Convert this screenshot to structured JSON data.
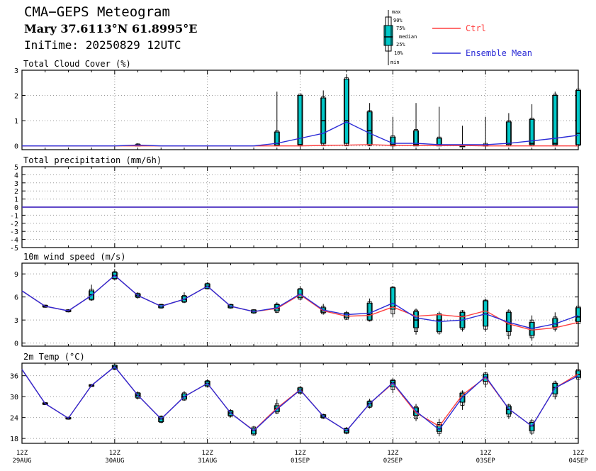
{
  "header": {
    "title": "CMA−GEPS Meteogram",
    "location": "Mary 37.6113°N 61.8995°E",
    "init_time": "IniTime: 20250829 12UTC"
  },
  "legend": {
    "box_labels": [
      "max",
      "90%",
      "75%",
      "median",
      "25%",
      "10%",
      "min"
    ],
    "ctrl_label": "Ctrl",
    "mean_label": "Ensemble Mean",
    "ctrl_color": "#ff4040",
    "mean_color": "#2b2bd6",
    "box_color": "#00c8c8"
  },
  "x_axis": {
    "ticks": [
      {
        "top": "12Z",
        "bottom": "29AUG"
      },
      {
        "top": "12Z",
        "bottom": "30AUG"
      },
      {
        "top": "12Z",
        "bottom": "31AUG"
      },
      {
        "top": "12Z",
        "bottom": "01SEP"
      },
      {
        "top": "12Z",
        "bottom": "02SEP"
      },
      {
        "top": "12Z",
        "bottom": "03SEP"
      },
      {
        "top": "12Z",
        "bottom": "04SEP"
      }
    ]
  },
  "chart_data": [
    {
      "type": "box",
      "title": "Total Cloud Cover (%)",
      "ylim": [
        -0.15,
        3
      ],
      "yticks": [
        0,
        1,
        2,
        3
      ],
      "ctrl": [
        0,
        0,
        0,
        0,
        0,
        0,
        0,
        0,
        0,
        0,
        0,
        0,
        0,
        0.02,
        0.03,
        0.05,
        0.02,
        0.02,
        0.01,
        0.02,
        0,
        0,
        0,
        0,
        0
      ],
      "mean": [
        0,
        0,
        0,
        0,
        0,
        0.03,
        0,
        0,
        0,
        0,
        0,
        0.1,
        0.3,
        0.5,
        0.95,
        0.5,
        0.1,
        0.1,
        0.05,
        0.05,
        0.05,
        0.1,
        0.2,
        0.3,
        0.42
      ],
      "boxes": [
        {
          "i": 5,
          "min": 0,
          "p10": 0,
          "p25": 0.02,
          "median": 0.03,
          "p75": 0.05,
          "p90": 0.08,
          "max": 0.1
        },
        {
          "i": 11,
          "min": 0,
          "p10": 0,
          "p25": 0.03,
          "median": 0.1,
          "p75": 0.55,
          "p90": 0.6,
          "max": 2.15
        },
        {
          "i": 12,
          "min": 0,
          "p10": 0,
          "p25": 0.05,
          "median": 0.05,
          "p75": 2.0,
          "p90": 2.05,
          "max": 2.05
        },
        {
          "i": 13,
          "min": 0,
          "p10": 0,
          "p25": 0.1,
          "median": 1.0,
          "p75": 1.9,
          "p90": 1.95,
          "max": 2.2
        },
        {
          "i": 14,
          "min": 0,
          "p10": 0,
          "p25": 0.1,
          "median": 1.0,
          "p75": 2.65,
          "p90": 2.7,
          "max": 2.85
        },
        {
          "i": 15,
          "min": 0,
          "p10": 0,
          "p25": 0.05,
          "median": 0.6,
          "p75": 1.35,
          "p90": 1.4,
          "max": 1.7
        },
        {
          "i": 16,
          "min": 0,
          "p10": 0,
          "p25": 0,
          "median": 0.05,
          "p75": 0.35,
          "p90": 0.4,
          "max": 1.15
        },
        {
          "i": 17,
          "min": 0,
          "p10": 0,
          "p25": 0,
          "median": 0.05,
          "p75": 0.6,
          "p90": 0.65,
          "max": 1.7
        },
        {
          "i": 18,
          "min": 0,
          "p10": 0,
          "p25": 0,
          "median": 0.05,
          "p75": 0.3,
          "p90": 0.35,
          "max": 1.55
        },
        {
          "i": 19,
          "min": 0,
          "p10": 0,
          "p25": 0,
          "median": 0,
          "p75": 0.02,
          "p90": 0.05,
          "max": 0.8
        },
        {
          "i": 20,
          "min": 0,
          "p10": 0,
          "p25": 0,
          "median": 0.02,
          "p75": 0.05,
          "p90": 0.1,
          "max": 1.15
        },
        {
          "i": 21,
          "min": 0,
          "p10": 0,
          "p25": 0.05,
          "median": 0.1,
          "p75": 0.95,
          "p90": 1.0,
          "max": 1.3
        },
        {
          "i": 22,
          "min": 0,
          "p10": 0,
          "p25": 0.05,
          "median": 0.1,
          "p75": 1.05,
          "p90": 1.1,
          "max": 1.65
        },
        {
          "i": 23,
          "min": 0,
          "p10": 0,
          "p25": 0.05,
          "median": 0.1,
          "p75": 2.0,
          "p90": 2.05,
          "max": 2.15
        },
        {
          "i": 24,
          "min": 0,
          "p10": 0,
          "p25": 0.05,
          "median": 0.5,
          "p75": 2.2,
          "p90": 2.25,
          "max": 2.3
        }
      ]
    },
    {
      "type": "box",
      "title": "Total precipitation (mm/6h)",
      "ylim": [
        -5,
        5
      ],
      "yticks": [
        -5,
        -4,
        -3,
        -2,
        -1,
        0,
        1,
        2,
        3,
        4,
        5
      ],
      "ctrl": [
        0,
        0,
        0,
        0,
        0,
        0,
        0,
        0,
        0,
        0,
        0,
        0,
        0,
        0,
        0,
        0,
        0,
        0,
        0,
        0,
        0,
        0,
        0,
        0,
        0
      ],
      "mean": [
        0,
        0,
        0,
        0,
        0,
        0,
        0,
        0,
        0,
        0,
        0,
        0,
        0,
        0,
        0,
        0,
        0,
        0,
        0,
        0,
        0,
        0,
        0,
        0,
        0
      ],
      "boxes": []
    },
    {
      "type": "box",
      "title": "10m wind speed (m/s)",
      "ylim": [
        -0.4,
        10.4
      ],
      "yticks": [
        0,
        3,
        6,
        9
      ],
      "ctrl": [
        6.8,
        4.8,
        4.2,
        6.2,
        8.8,
        6.2,
        4.8,
        5.7,
        7.4,
        4.8,
        4.1,
        4.5,
        6.3,
        4.2,
        3.5,
        3.6,
        4.7,
        3.5,
        3.7,
        3.4,
        4.2,
        2.5,
        1.7,
        2.0,
        2.7
      ],
      "mean": [
        6.8,
        4.8,
        4.2,
        6.2,
        8.8,
        6.2,
        4.8,
        5.7,
        7.4,
        4.8,
        4.1,
        4.6,
        6.4,
        4.3,
        3.7,
        3.9,
        5.2,
        3.3,
        2.8,
        3.0,
        3.8,
        2.7,
        1.9,
        2.5,
        3.6
      ],
      "boxes": [
        {
          "i": 1,
          "min": 4.6,
          "p10": 4.65,
          "p25": 4.7,
          "median": 4.8,
          "p75": 4.9,
          "p90": 4.95,
          "max": 5.0
        },
        {
          "i": 2,
          "min": 4.0,
          "p10": 4.05,
          "p25": 4.1,
          "median": 4.2,
          "p75": 4.3,
          "p90": 4.35,
          "max": 4.4
        },
        {
          "i": 3,
          "min": 5.5,
          "p10": 5.6,
          "p25": 5.7,
          "median": 6.3,
          "p75": 6.8,
          "p90": 7.0,
          "max": 7.6
        },
        {
          "i": 4,
          "min": 8.2,
          "p10": 8.3,
          "p25": 8.4,
          "median": 8.8,
          "p75": 9.2,
          "p90": 9.3,
          "max": 9.6
        },
        {
          "i": 5,
          "min": 5.8,
          "p10": 5.9,
          "p25": 6.0,
          "median": 6.2,
          "p75": 6.4,
          "p90": 6.5,
          "max": 6.6
        },
        {
          "i": 6,
          "min": 4.5,
          "p10": 4.55,
          "p25": 4.6,
          "median": 4.8,
          "p75": 5.0,
          "p90": 5.05,
          "max": 5.1
        },
        {
          "i": 7,
          "min": 5.2,
          "p10": 5.3,
          "p25": 5.4,
          "median": 5.7,
          "p75": 6.1,
          "p90": 6.2,
          "max": 6.6
        },
        {
          "i": 8,
          "min": 7.0,
          "p10": 7.05,
          "p25": 7.1,
          "median": 7.4,
          "p75": 7.7,
          "p90": 7.8,
          "max": 7.9
        },
        {
          "i": 9,
          "min": 4.5,
          "p10": 4.55,
          "p25": 4.6,
          "median": 4.8,
          "p75": 5.0,
          "p90": 5.05,
          "max": 5.1
        },
        {
          "i": 10,
          "min": 3.8,
          "p10": 3.9,
          "p25": 3.95,
          "median": 4.1,
          "p75": 4.3,
          "p90": 4.35,
          "max": 4.4
        },
        {
          "i": 11,
          "min": 3.9,
          "p10": 4.0,
          "p25": 4.2,
          "median": 4.5,
          "p75": 5.0,
          "p90": 5.1,
          "max": 5.3
        },
        {
          "i": 12,
          "min": 5.6,
          "p10": 5.7,
          "p25": 5.9,
          "median": 6.3,
          "p75": 7.0,
          "p90": 7.1,
          "max": 7.4
        },
        {
          "i": 13,
          "min": 3.7,
          "p10": 3.8,
          "p25": 4.0,
          "median": 4.2,
          "p75": 4.6,
          "p90": 4.8,
          "max": 5.1
        },
        {
          "i": 14,
          "min": 3.0,
          "p10": 3.1,
          "p25": 3.3,
          "median": 3.5,
          "p75": 3.9,
          "p90": 4.0,
          "max": 4.2
        },
        {
          "i": 15,
          "min": 2.8,
          "p10": 2.9,
          "p25": 3.0,
          "median": 3.7,
          "p75": 5.2,
          "p90": 5.4,
          "max": 5.8
        },
        {
          "i": 16,
          "min": 3.4,
          "p10": 3.8,
          "p25": 4.4,
          "median": 4.7,
          "p75": 7.2,
          "p90": 7.3,
          "max": 7.4
        },
        {
          "i": 17,
          "min": 1.1,
          "p10": 1.5,
          "p25": 2.0,
          "median": 3.0,
          "p75": 4.1,
          "p90": 4.3,
          "max": 4.5
        },
        {
          "i": 18,
          "min": 1.1,
          "p10": 1.3,
          "p25": 1.5,
          "median": 3.0,
          "p75": 3.7,
          "p90": 3.9,
          "max": 4.1
        },
        {
          "i": 19,
          "min": 1.5,
          "p10": 1.8,
          "p25": 2.0,
          "median": 3.5,
          "p75": 4.0,
          "p90": 4.2,
          "max": 4.3
        },
        {
          "i": 20,
          "min": 1.5,
          "p10": 1.8,
          "p25": 2.2,
          "median": 3.8,
          "p75": 5.5,
          "p90": 5.6,
          "max": 5.8
        },
        {
          "i": 21,
          "min": 0.5,
          "p10": 1.0,
          "p25": 1.5,
          "median": 2.5,
          "p75": 4.0,
          "p90": 4.2,
          "max": 4.4
        },
        {
          "i": 22,
          "min": 0.3,
          "p10": 0.7,
          "p25": 1.0,
          "median": 1.7,
          "p75": 2.7,
          "p90": 3.0,
          "max": 3.6
        },
        {
          "i": 23,
          "min": 1.5,
          "p10": 1.8,
          "p25": 2.1,
          "median": 2.5,
          "p75": 3.2,
          "p90": 3.4,
          "max": 4.0
        },
        {
          "i": 24,
          "min": 2.2,
          "p10": 2.5,
          "p25": 2.8,
          "median": 3.4,
          "p75": 4.6,
          "p90": 4.8,
          "max": 4.9
        }
      ]
    },
    {
      "type": "box",
      "title": "2m Temp (°C)",
      "ylim": [
        16.6,
        39.6
      ],
      "yticks": [
        18,
        24,
        30,
        36
      ],
      "ctrl": [
        37.8,
        28.0,
        23.8,
        33.2,
        38.6,
        30.4,
        23.6,
        30.0,
        33.8,
        25.3,
        20.3,
        26.7,
        32.0,
        24.4,
        20.2,
        28.0,
        33.8,
        25.4,
        21.5,
        30.5,
        35.5,
        26.5,
        21.5,
        32.5,
        36.5
      ],
      "mean": [
        37.8,
        28.0,
        23.8,
        33.2,
        38.6,
        30.4,
        23.6,
        30.0,
        33.8,
        25.3,
        20.2,
        26.4,
        31.9,
        24.4,
        20.2,
        28.0,
        34.0,
        25.8,
        20.5,
        29.8,
        35.8,
        26.5,
        21.5,
        32.5,
        36.0
      ],
      "boxes": [
        {
          "i": 1,
          "min": 27.6,
          "p10": 27.7,
          "p25": 27.8,
          "median": 28.0,
          "p75": 28.2,
          "p90": 28.3,
          "max": 28.4
        },
        {
          "i": 2,
          "min": 23.4,
          "p10": 23.5,
          "p25": 23.6,
          "median": 23.8,
          "p75": 24.0,
          "p90": 24.1,
          "max": 24.2
        },
        {
          "i": 3,
          "min": 32.8,
          "p10": 32.9,
          "p25": 33.0,
          "median": 33.2,
          "p75": 33.4,
          "p90": 33.5,
          "max": 33.6
        },
        {
          "i": 4,
          "min": 37.6,
          "p10": 37.8,
          "p25": 38.0,
          "median": 38.6,
          "p75": 39.0,
          "p90": 39.1,
          "max": 39.3
        },
        {
          "i": 5,
          "min": 29.2,
          "p10": 29.5,
          "p25": 29.8,
          "median": 30.4,
          "p75": 31.0,
          "p90": 31.2,
          "max": 31.5
        },
        {
          "i": 6,
          "min": 22.4,
          "p10": 22.6,
          "p25": 22.8,
          "median": 23.6,
          "p75": 24.2,
          "p90": 24.4,
          "max": 24.6
        },
        {
          "i": 7,
          "min": 28.8,
          "p10": 29.0,
          "p25": 29.3,
          "median": 30.0,
          "p75": 30.8,
          "p90": 31.1,
          "max": 31.6
        },
        {
          "i": 8,
          "min": 32.6,
          "p10": 32.8,
          "p25": 33.1,
          "median": 33.8,
          "p75": 34.4,
          "p90": 34.6,
          "max": 35.0
        },
        {
          "i": 9,
          "min": 24.0,
          "p10": 24.3,
          "p25": 24.6,
          "median": 25.3,
          "p75": 25.9,
          "p90": 26.1,
          "max": 26.4
        },
        {
          "i": 10,
          "min": 18.8,
          "p10": 19.0,
          "p25": 19.3,
          "median": 20.3,
          "p75": 21.0,
          "p90": 21.3,
          "max": 21.6
        },
        {
          "i": 11,
          "min": 25.0,
          "p10": 25.3,
          "p25": 25.7,
          "median": 26.6,
          "p75": 27.4,
          "p90": 28.0,
          "max": 29.2
        },
        {
          "i": 12,
          "min": 30.6,
          "p10": 30.9,
          "p25": 31.2,
          "median": 31.9,
          "p75": 32.5,
          "p90": 32.7,
          "max": 33.0
        },
        {
          "i": 13,
          "min": 23.6,
          "p10": 23.8,
          "p25": 24.0,
          "median": 24.4,
          "p75": 24.8,
          "p90": 24.9,
          "max": 25.1
        },
        {
          "i": 14,
          "min": 19.2,
          "p10": 19.4,
          "p25": 19.7,
          "median": 20.2,
          "p75": 20.8,
          "p90": 21.0,
          "max": 21.3
        },
        {
          "i": 15,
          "min": 26.6,
          "p10": 26.9,
          "p25": 27.2,
          "median": 28.0,
          "p75": 28.6,
          "p90": 28.8,
          "max": 29.4
        },
        {
          "i": 16,
          "min": 31.0,
          "p10": 32.0,
          "p25": 32.8,
          "median": 34.0,
          "p75": 34.6,
          "p90": 34.9,
          "max": 35.3
        },
        {
          "i": 17,
          "min": 23.0,
          "p10": 23.6,
          "p25": 24.6,
          "median": 25.8,
          "p75": 26.8,
          "p90": 27.2,
          "max": 27.9
        },
        {
          "i": 18,
          "min": 18.6,
          "p10": 19.4,
          "p25": 20.0,
          "median": 20.8,
          "p75": 22.0,
          "p90": 22.6,
          "max": 23.6
        },
        {
          "i": 19,
          "min": 26.2,
          "p10": 27.5,
          "p25": 28.4,
          "median": 30.0,
          "p75": 31.0,
          "p90": 31.3,
          "max": 31.8
        },
        {
          "i": 20,
          "min": 32.6,
          "p10": 33.6,
          "p25": 34.4,
          "median": 35.6,
          "p75": 36.4,
          "p90": 36.8,
          "max": 37.1
        },
        {
          "i": 21,
          "min": 23.6,
          "p10": 24.3,
          "p25": 25.0,
          "median": 26.3,
          "p75": 27.2,
          "p90": 27.6,
          "max": 28.0
        },
        {
          "i": 22,
          "min": 19.0,
          "p10": 19.5,
          "p25": 20.2,
          "median": 21.6,
          "p75": 22.6,
          "p90": 23.1,
          "max": 23.6
        },
        {
          "i": 23,
          "min": 29.2,
          "p10": 30.0,
          "p25": 30.8,
          "median": 32.6,
          "p75": 33.8,
          "p90": 34.2,
          "max": 34.6
        },
        {
          "i": 24,
          "min": 34.4,
          "p10": 35.0,
          "p25": 35.5,
          "median": 36.4,
          "p75": 37.4,
          "p90": 37.8,
          "max": 38.2
        }
      ]
    }
  ]
}
